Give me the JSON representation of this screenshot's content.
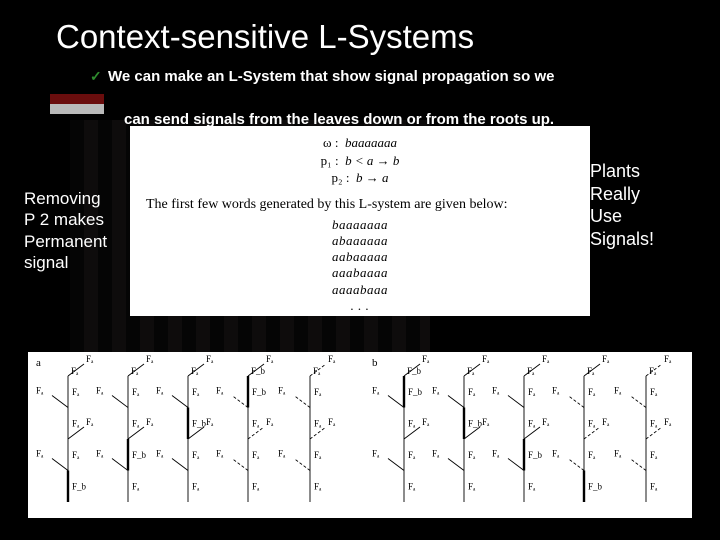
{
  "title": "Context-sensitive L-Systems",
  "bullet": {
    "line1": "We can make an L-System that show signal propagation so we",
    "line2": "can send signals from the leaves down or from the roots up."
  },
  "rules": {
    "omega_lhs": "ω :",
    "omega_rhs": "baaaaaaa",
    "p1_lhs": "p₁ :",
    "p1_rhs": "b < a → b",
    "p2_lhs": "p₂ :",
    "p2_rhs": "b → a"
  },
  "prose": "The first few words generated by this L-system are given below:",
  "words": [
    "baaaaaaa",
    "abaaaaaa",
    "aabaaaaa",
    "aaabaaaa",
    "aaaabaaa",
    ". . ."
  ],
  "left_note": [
    "Removing",
    "P 2 makes",
    "Permanent",
    "signal"
  ],
  "right_note": [
    "Plants",
    "Really",
    "Use",
    "Signals!"
  ],
  "diagram": {
    "panel_label_a": "a",
    "panel_label_b": "b",
    "Fa": "Fₐ",
    "Fb": "F_b",
    "colors": {
      "line": "#000000",
      "bold": "#000000",
      "bg": "#ffffff"
    },
    "styling": {
      "thin_width": 0.9,
      "bold_width": 2.4,
      "dash": "3,2",
      "font_size_label": 9,
      "font_size_panel": 11
    },
    "trees": {
      "count": 10,
      "per_panel": 5
    }
  }
}
